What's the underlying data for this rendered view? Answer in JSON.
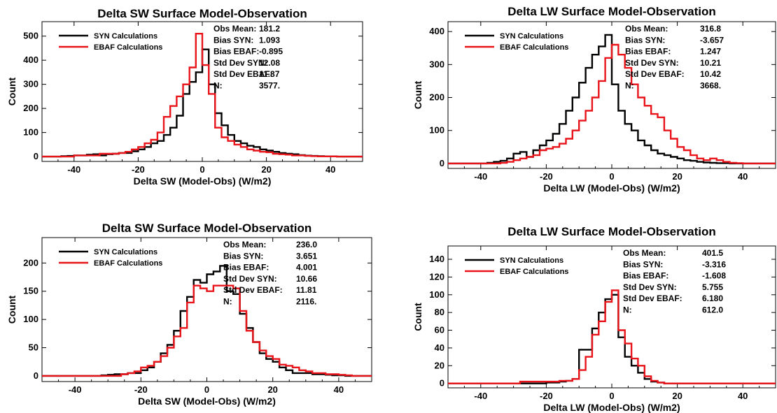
{
  "colors": {
    "syn": "#000000",
    "ebaf": "#e8141a",
    "axis": "#000000",
    "background": "#ffffff"
  },
  "chart_data": [
    {
      "type": "histogram",
      "title": "Delta SW Surface Model-Observation",
      "xlabel": "Delta SW (Model-Obs) (W/m2)",
      "ylabel": "Count",
      "xlim": [
        -50,
        50
      ],
      "ylim": [
        -20,
        560
      ],
      "xticks": [
        -40,
        -20,
        0,
        20,
        40
      ],
      "yticks": [
        0,
        100,
        200,
        300,
        400,
        500
      ],
      "bin_width": 2,
      "x": [
        -50,
        -48,
        -46,
        -44,
        -42,
        -40,
        -38,
        -36,
        -34,
        -32,
        -30,
        -28,
        -26,
        -24,
        -22,
        -20,
        -18,
        -16,
        -14,
        -12,
        -10,
        -8,
        -6,
        -4,
        -2,
        0,
        2,
        4,
        6,
        8,
        10,
        12,
        14,
        16,
        18,
        20,
        22,
        24,
        26,
        28,
        30,
        32,
        34,
        36,
        38,
        40,
        42,
        44,
        46,
        48
      ],
      "legend": {
        "placement": "top-left",
        "entries": [
          "SYN Calculations",
          "EBAF Calculations"
        ]
      },
      "stats": [
        {
          "label": "Obs Mean:",
          "value": "181.2"
        },
        {
          "label": "Bias SYN:",
          "value": "1.093"
        },
        {
          "label": "Bias EBAF:",
          "value": "-0.895"
        },
        {
          "label": "Std Dev SYN:",
          "value": "12.08"
        },
        {
          "label": "Std Dev EBAF:",
          "value": "11.87"
        },
        {
          "label": "N:",
          "value": "3577."
        }
      ],
      "series": [
        {
          "name": "SYN Calculations",
          "color": "#000000",
          "values": [
            0,
            0,
            0,
            2,
            3,
            5,
            5,
            8,
            10,
            5,
            10,
            12,
            15,
            15,
            22,
            30,
            40,
            55,
            65,
            90,
            120,
            170,
            260,
            310,
            350,
            445,
            300,
            180,
            130,
            90,
            65,
            55,
            45,
            40,
            30,
            25,
            20,
            15,
            12,
            10,
            6,
            4,
            3,
            2,
            1,
            1,
            0,
            0,
            0,
            0
          ]
        },
        {
          "name": "EBAF Calculations",
          "color": "#e8141a",
          "values": [
            0,
            0,
            0,
            0,
            0,
            5,
            5,
            5,
            5,
            12,
            12,
            12,
            15,
            20,
            30,
            40,
            55,
            70,
            100,
            165,
            210,
            250,
            300,
            370,
            510,
            380,
            260,
            120,
            80,
            65,
            50,
            40,
            30,
            25,
            20,
            18,
            12,
            10,
            8,
            5,
            5,
            3,
            2,
            1,
            1,
            1,
            0,
            0,
            0,
            0
          ]
        }
      ]
    },
    {
      "type": "histogram",
      "title": "Delta LW Surface Model-Observation",
      "xlabel": "Delta LW (Model-Obs) (W/m2)",
      "ylabel": "Count",
      "xlim": [
        -50,
        50
      ],
      "ylim": [
        -15,
        430
      ],
      "xticks": [
        -40,
        -20,
        0,
        20,
        40
      ],
      "yticks": [
        0,
        100,
        200,
        300,
        400
      ],
      "bin_width": 2,
      "x": [
        -50,
        -48,
        -46,
        -44,
        -42,
        -40,
        -38,
        -36,
        -34,
        -32,
        -30,
        -28,
        -26,
        -24,
        -22,
        -20,
        -18,
        -16,
        -14,
        -12,
        -10,
        -8,
        -6,
        -4,
        -2,
        0,
        2,
        4,
        6,
        8,
        10,
        12,
        14,
        16,
        18,
        20,
        22,
        24,
        26,
        28,
        30,
        32,
        34,
        36,
        38,
        40,
        42,
        44,
        46,
        48
      ],
      "legend": {
        "placement": "top-left",
        "entries": [
          "SYN Calculations",
          "EBAF Calculations"
        ]
      },
      "stats": [
        {
          "label": "Obs Mean:",
          "value": "316.8"
        },
        {
          "label": "Bias SYN:",
          "value": "-3.657"
        },
        {
          "label": "Bias EBAF:",
          "value": "1.247"
        },
        {
          "label": "Std Dev SYN:",
          "value": "10.21"
        },
        {
          "label": "Std Dev EBAF:",
          "value": "10.42"
        },
        {
          "label": "N:",
          "value": "3668."
        }
      ],
      "series": [
        {
          "name": "SYN Calculations",
          "color": "#000000",
          "values": [
            0,
            0,
            0,
            0,
            0,
            0,
            2,
            5,
            8,
            15,
            30,
            35,
            20,
            40,
            55,
            70,
            90,
            120,
            160,
            200,
            245,
            290,
            330,
            355,
            390,
            240,
            160,
            120,
            100,
            70,
            55,
            40,
            30,
            25,
            20,
            15,
            10,
            8,
            5,
            3,
            2,
            1,
            1,
            0,
            0,
            0,
            0,
            0,
            0,
            0
          ]
        },
        {
          "name": "EBAF Calculations",
          "color": "#e8141a",
          "values": [
            0,
            0,
            0,
            0,
            0,
            0,
            0,
            0,
            2,
            5,
            10,
            15,
            20,
            25,
            40,
            45,
            50,
            60,
            75,
            100,
            130,
            160,
            200,
            250,
            320,
            360,
            330,
            290,
            240,
            200,
            175,
            150,
            140,
            100,
            75,
            50,
            40,
            25,
            15,
            10,
            15,
            10,
            5,
            2,
            1,
            0,
            0,
            0,
            0,
            0
          ]
        }
      ]
    },
    {
      "type": "histogram",
      "title": "Delta SW Surface Model-Observation",
      "xlabel": "Delta SW (Model-Obs) (W/m2)",
      "ylabel": "Count",
      "xlim": [
        -50,
        50
      ],
      "ylim": [
        -10,
        245
      ],
      "xticks": [
        -40,
        -20,
        0,
        20,
        40
      ],
      "yticks": [
        0,
        50,
        100,
        150,
        200
      ],
      "bin_width": 2,
      "x": [
        -50,
        -48,
        -46,
        -44,
        -42,
        -40,
        -38,
        -36,
        -34,
        -32,
        -30,
        -28,
        -26,
        -24,
        -22,
        -20,
        -18,
        -16,
        -14,
        -12,
        -10,
        -8,
        -6,
        -4,
        -2,
        0,
        2,
        4,
        6,
        8,
        10,
        12,
        14,
        16,
        18,
        20,
        22,
        24,
        26,
        28,
        30,
        32,
        34,
        36,
        38,
        40,
        42,
        44,
        46,
        48
      ],
      "legend": {
        "placement": "top-left",
        "entries": [
          "SYN Calculations",
          "EBAF Calculations"
        ]
      },
      "stats": [
        {
          "label": "Obs Mean:",
          "value": "236.0"
        },
        {
          "label": "Bias SYN:",
          "value": "3.651"
        },
        {
          "label": "Bias EBAF:",
          "value": "4.001"
        },
        {
          "label": "Std Dev SYN:",
          "value": "10.66"
        },
        {
          "label": "Std Dev EBAF:",
          "value": "11.81"
        },
        {
          "label": "N:",
          "value": "2116."
        }
      ],
      "series": [
        {
          "name": "SYN Calculations",
          "color": "#000000",
          "values": [
            0,
            0,
            0,
            0,
            0,
            0,
            0,
            0,
            0,
            1,
            2,
            3,
            3,
            5,
            5,
            10,
            15,
            25,
            40,
            55,
            80,
            115,
            140,
            170,
            165,
            180,
            185,
            195,
            150,
            145,
            110,
            85,
            60,
            40,
            30,
            25,
            15,
            10,
            5,
            5,
            5,
            3,
            3,
            2,
            1,
            1,
            0,
            0,
            0,
            0
          ]
        },
        {
          "name": "EBAF Calculations",
          "color": "#e8141a",
          "values": [
            0,
            0,
            0,
            0,
            0,
            0,
            0,
            0,
            0,
            0,
            0,
            0,
            3,
            5,
            8,
            15,
            18,
            25,
            35,
            50,
            70,
            85,
            130,
            160,
            155,
            150,
            160,
            160,
            160,
            155,
            115,
            80,
            60,
            45,
            35,
            30,
            20,
            18,
            15,
            10,
            8,
            5,
            5,
            3,
            3,
            2,
            1,
            0,
            0,
            0
          ]
        }
      ]
    },
    {
      "type": "histogram",
      "title": "Delta LW Surface Model-Observation",
      "xlabel": "Delta LW (Model-Obs) (W/m2)",
      "ylabel": "Count",
      "xlim": [
        -50,
        50
      ],
      "ylim": [
        -5,
        155
      ],
      "xticks": [
        -40,
        -20,
        0,
        20,
        40
      ],
      "yticks": [
        0,
        20,
        40,
        60,
        80,
        100,
        120,
        140
      ],
      "bin_width": 2,
      "x": [
        -50,
        -48,
        -46,
        -44,
        -42,
        -40,
        -38,
        -36,
        -34,
        -32,
        -30,
        -28,
        -26,
        -24,
        -22,
        -20,
        -18,
        -16,
        -14,
        -12,
        -10,
        -8,
        -6,
        -4,
        -2,
        0,
        2,
        4,
        6,
        8,
        10,
        12,
        14,
        16,
        18,
        20,
        22,
        24,
        26,
        28,
        30,
        32,
        34,
        36,
        38,
        40,
        42,
        44,
        46,
        48
      ],
      "legend": {
        "placement": "top-left",
        "entries": [
          "SYN Calculations",
          "EBAF Calculations"
        ]
      },
      "stats": [
        {
          "label": "Obs Mean:",
          "value": "401.5"
        },
        {
          "label": "Bias SYN:",
          "value": "-3.316"
        },
        {
          "label": "Bias EBAF:",
          "value": "-1.608"
        },
        {
          "label": "Std Dev SYN:",
          "value": "5.755"
        },
        {
          "label": "Std Dev EBAF:",
          "value": "6.180"
        },
        {
          "label": "N:",
          "value": "612.0"
        }
      ],
      "series": [
        {
          "name": "SYN Calculations",
          "color": "#000000",
          "values": [
            0,
            0,
            0,
            0,
            0,
            0,
            0,
            0,
            0,
            0,
            0,
            0,
            0,
            0,
            0,
            1,
            1,
            2,
            3,
            5,
            38,
            38,
            62,
            80,
            95,
            100,
            52,
            30,
            20,
            12,
            5,
            2,
            1,
            0,
            0,
            0,
            0,
            0,
            0,
            0,
            0,
            0,
            0,
            0,
            0,
            0,
            0,
            0,
            0,
            0
          ]
        },
        {
          "name": "EBAF Calculations",
          "color": "#e8141a",
          "values": [
            0,
            0,
            0,
            0,
            0,
            0,
            0,
            0,
            0,
            0,
            0,
            2,
            2,
            2,
            2,
            2,
            2,
            3,
            3,
            5,
            15,
            30,
            55,
            70,
            92,
            105,
            60,
            45,
            28,
            20,
            8,
            3,
            1,
            0,
            0,
            0,
            0,
            0,
            0,
            0,
            0,
            0,
            0,
            0,
            0,
            0,
            0,
            0,
            0,
            0
          ]
        }
      ]
    }
  ]
}
